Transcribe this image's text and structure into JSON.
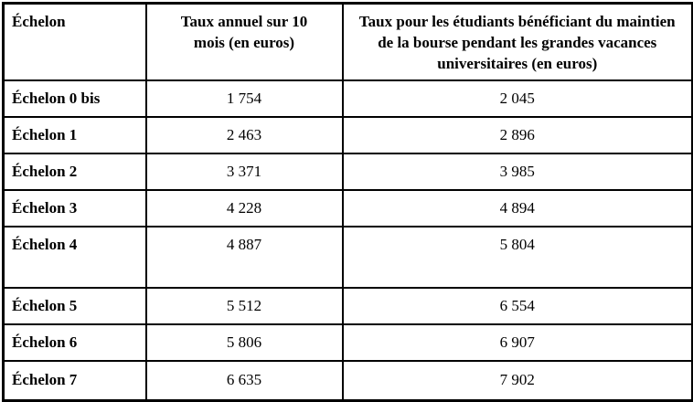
{
  "table": {
    "columns": {
      "echelon": "Échelon",
      "annual": "Taux annuel sur 10 mois (en euros)",
      "vacation": "Taux pour les étudiants bénéficiant du maintien de la bourse pendant les grandes vacances universitaires (en euros)"
    },
    "rows": [
      {
        "label": "Échelon 0 bis",
        "annual": "1 754",
        "vacation": "2 045"
      },
      {
        "label": "Échelon 1",
        "annual": "2 463",
        "vacation": "2 896"
      },
      {
        "label": "Échelon 2",
        "annual": "3 371",
        "vacation": "3 985"
      },
      {
        "label": "Échelon 3",
        "annual": "4 228",
        "vacation": "4 894"
      },
      {
        "label": "Échelon 4",
        "annual": "4 887",
        "vacation": "5 804"
      },
      {
        "label": "Échelon 5",
        "annual": "5 512",
        "vacation": "6 554"
      },
      {
        "label": "Échelon 6",
        "annual": "5 806",
        "vacation": "6 907"
      },
      {
        "label": "Échelon 7",
        "annual": "6 635",
        "vacation": "7 902"
      }
    ],
    "colors": {
      "border": "#000000",
      "text": "#000000",
      "background": "#ffffff"
    }
  }
}
